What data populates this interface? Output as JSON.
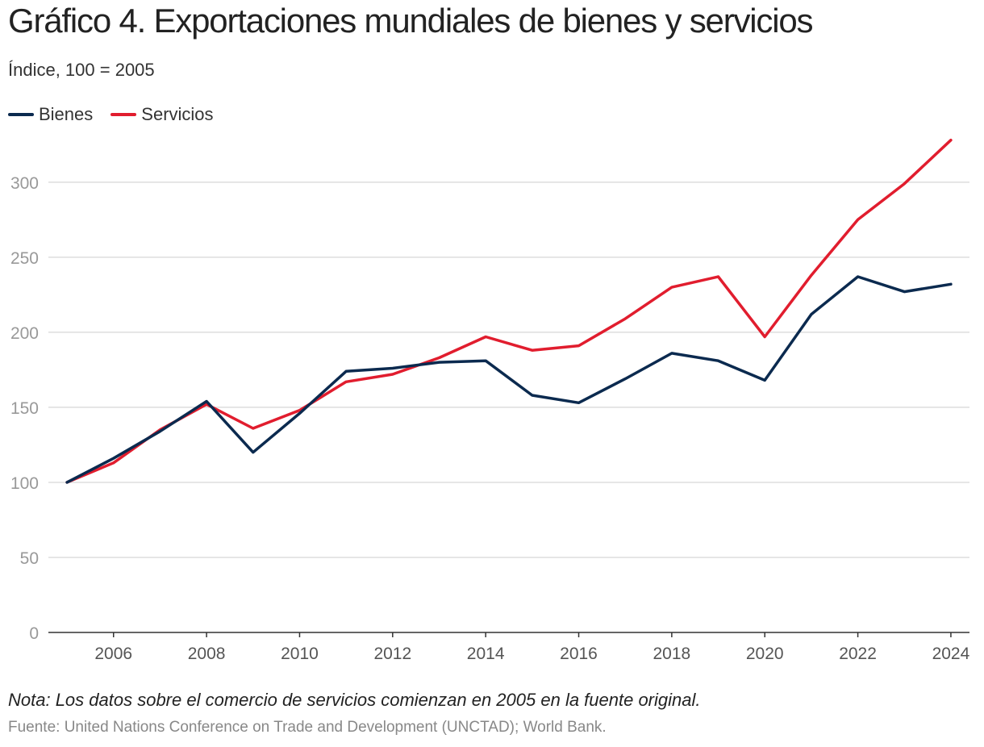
{
  "title": "Gráfico 4. Exportaciones mundiales de bienes y servicios",
  "subtitle": "Índice, 100 = 2005",
  "note": "Nota: Los datos sobre el comercio de servicios comienzan en 2005 en la fuente original.",
  "source": "Fuente: United Nations Conference on Trade and Development (UNCTAD); World Bank.",
  "colors": {
    "bienes": "#0b2a4f",
    "servicios": "#e11d2e",
    "grid": "#dddddd",
    "axis": "#333333"
  },
  "chart_data": {
    "type": "line",
    "title": "Gráfico 4. Exportaciones mundiales de bienes y servicios",
    "ylabel": "Índice, 100 = 2005",
    "xlabel": "",
    "x": [
      2005,
      2006,
      2007,
      2008,
      2009,
      2010,
      2011,
      2012,
      2013,
      2014,
      2015,
      2016,
      2017,
      2018,
      2019,
      2020,
      2021,
      2022,
      2023,
      2024
    ],
    "xlim": [
      2004.6,
      2024.4
    ],
    "ylim": [
      0,
      330
    ],
    "yticks": [
      0,
      50,
      100,
      150,
      200,
      250,
      300
    ],
    "xticks": [
      2006,
      2008,
      2010,
      2012,
      2014,
      2016,
      2018,
      2020,
      2022,
      2024
    ],
    "grid": true,
    "legend": "top-left",
    "series": [
      {
        "name": "Bienes",
        "color": "#0b2a4f",
        "values": [
          100,
          116,
          134,
          154,
          120,
          146,
          174,
          176,
          180,
          181,
          158,
          153,
          169,
          186,
          181,
          168,
          212,
          237,
          227,
          232
        ]
      },
      {
        "name": "Servicios",
        "color": "#e11d2e",
        "values": [
          100,
          113,
          135,
          152,
          136,
          148,
          167,
          172,
          183,
          197,
          188,
          191,
          209,
          230,
          237,
          197,
          238,
          275,
          299,
          328
        ]
      }
    ]
  }
}
